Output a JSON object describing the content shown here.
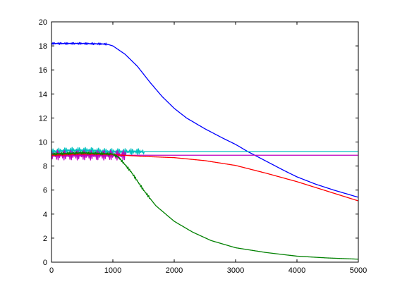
{
  "chart_data": {
    "type": "line",
    "xlim": [
      0,
      5000
    ],
    "ylim": [
      0,
      20
    ],
    "x_ticks": [
      0,
      1000,
      2000,
      3000,
      4000,
      5000
    ],
    "y_ticks": [
      0,
      2,
      4,
      6,
      8,
      10,
      12,
      14,
      16,
      18,
      20
    ],
    "x_tick_labels": [
      "0",
      "1000",
      "2000",
      "3000",
      "4000",
      "5000"
    ],
    "y_tick_labels": [
      "0",
      "2",
      "4",
      "6",
      "8",
      "10",
      "12",
      "14",
      "16",
      "18",
      "20"
    ],
    "grid": false,
    "legend": "none",
    "series": [
      {
        "color": "#0000ff",
        "x": [
          0,
          500,
          900,
          1000,
          1200,
          1400,
          1600,
          1800,
          2000,
          2200,
          2500,
          2800,
          3000,
          3200,
          3500,
          3800,
          4000,
          4300,
          4600,
          5000
        ],
        "y": [
          18.2,
          18.2,
          18.15,
          18.0,
          17.3,
          16.3,
          15.0,
          13.8,
          12.8,
          12.0,
          11.1,
          10.3,
          9.8,
          9.2,
          8.4,
          7.6,
          7.1,
          6.5,
          6.0,
          5.4
        ],
        "noise_amp": 0.08,
        "noise_until": 900
      },
      {
        "color": "#00bfbf",
        "x": [
          0,
          300,
          600,
          900,
          1200,
          1500,
          2000,
          3000,
          4000,
          5000
        ],
        "y": [
          9.2,
          9.3,
          9.3,
          9.2,
          9.2,
          9.2,
          9.2,
          9.2,
          9.2,
          9.2
        ],
        "noise_amp": 0.25,
        "noise_until": 1500
      },
      {
        "color": "#bf00bf",
        "x": [
          0,
          500,
          1000,
          1500,
          2000,
          3000,
          4000,
          5000
        ],
        "y": [
          8.9,
          8.9,
          8.9,
          8.9,
          8.9,
          8.9,
          8.9,
          8.9
        ],
        "noise_amp": 0.4,
        "noise_until": 1200
      },
      {
        "color": "#ff0000",
        "x": [
          0,
          500,
          1000,
          1500,
          2000,
          2500,
          3000,
          3500,
          4000,
          4500,
          5000
        ],
        "y": [
          8.9,
          9.0,
          8.95,
          8.8,
          8.7,
          8.45,
          8.05,
          7.4,
          6.7,
          5.9,
          5.1
        ],
        "noise_amp": 0.05,
        "noise_until": 1000
      },
      {
        "color": "#008000",
        "x": [
          0,
          500,
          1000,
          1100,
          1300,
          1500,
          1700,
          2000,
          2300,
          2600,
          3000,
          3500,
          4000,
          4500,
          5000
        ],
        "y": [
          9.0,
          9.1,
          9.0,
          8.7,
          7.5,
          6.0,
          4.7,
          3.4,
          2.5,
          1.8,
          1.2,
          0.8,
          0.5,
          0.35,
          0.25
        ],
        "noise_amp": 0.1,
        "noise_until": 1600
      }
    ]
  }
}
